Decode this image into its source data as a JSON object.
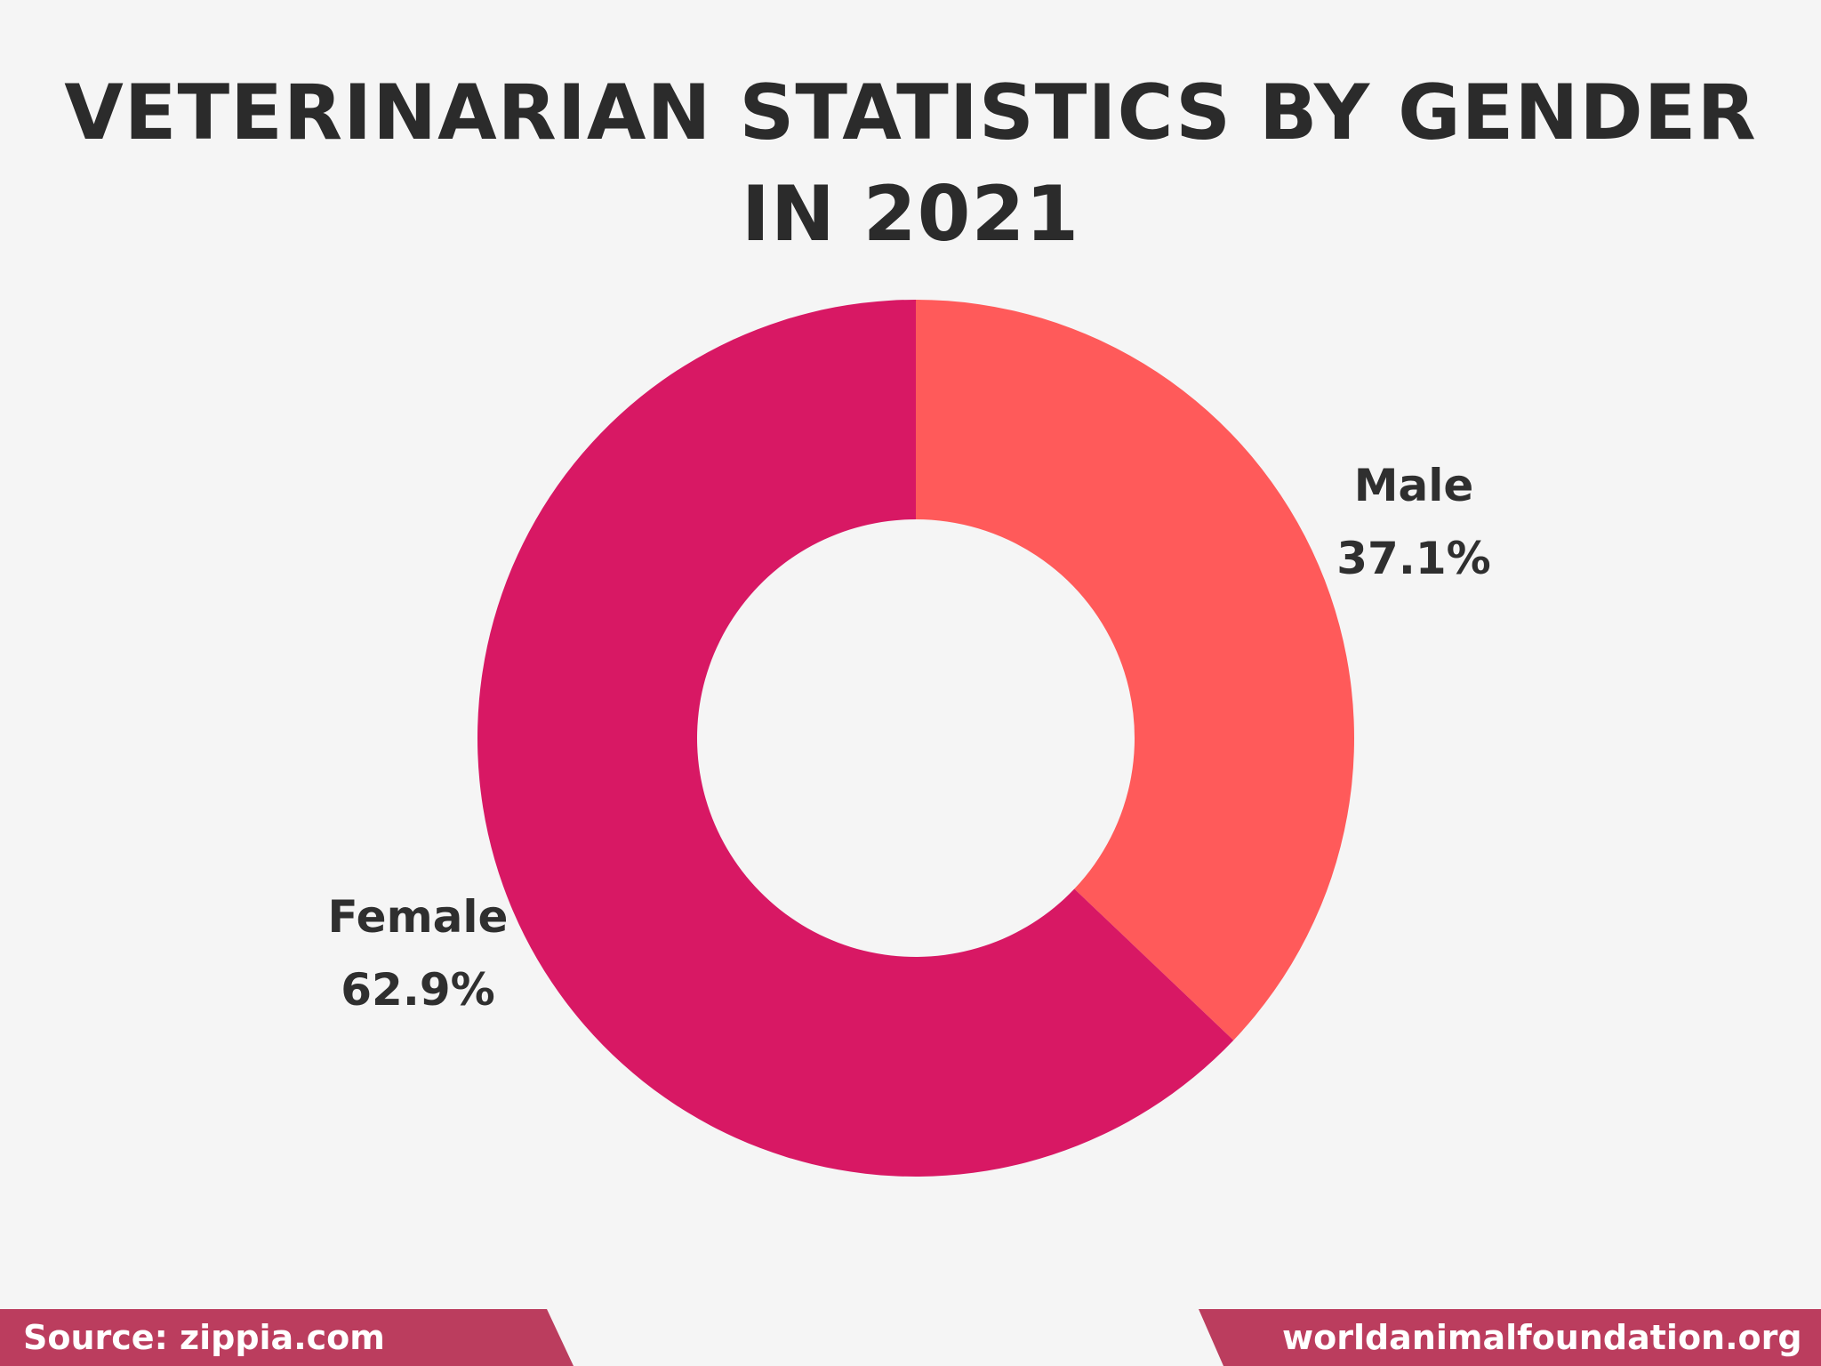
{
  "title": {
    "line1": "VETERINARIAN STATISTICS BY GENDER",
    "line2": "IN 2021"
  },
  "chart_data": {
    "type": "pie",
    "subtype": "donut",
    "title": "VETERINARIAN STATISTICS BY GENDER IN 2021",
    "categories": [
      "Male",
      "Female"
    ],
    "values": [
      37.1,
      62.9
    ],
    "unit": "%",
    "colors": [
      "#ff5a5a",
      "#d81864"
    ],
    "labels": [
      {
        "name": "Male",
        "value": "37.1%"
      },
      {
        "name": "Female",
        "value": "62.9%"
      }
    ],
    "start_angle": "12 o'clock, clockwise",
    "legend": "none (direct labels)"
  },
  "labels": {
    "male": {
      "name": "Male",
      "value": "37.1%"
    },
    "female": {
      "name": "Female",
      "value": "62.9%"
    }
  },
  "footer": {
    "source": "Source: zippia.com",
    "site": "worldanimalfoundation.org",
    "color": "#bb3d5e"
  },
  "colors": {
    "background": "#f5f5f5",
    "male": "#ff5a5a",
    "female": "#d81864",
    "text": "#2b2b2b"
  }
}
